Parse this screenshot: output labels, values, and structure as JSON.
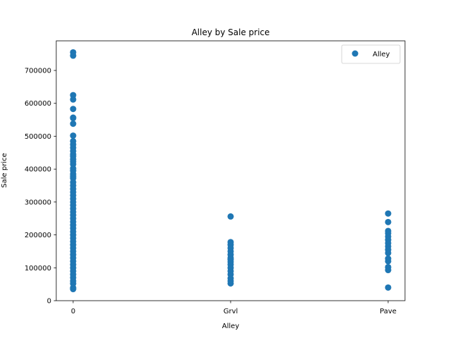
{
  "chart_data": {
    "type": "scatter",
    "title": "Alley by Sale price",
    "xlabel": "Alley",
    "ylabel": "Sale price",
    "categories": [
      "0",
      "Grvl",
      "Pave"
    ],
    "ylim": [
      0,
      790000
    ],
    "yticks": [
      0,
      100000,
      200000,
      300000,
      400000,
      500000,
      600000,
      700000
    ],
    "legend": {
      "position": "top-right",
      "label": "Alley"
    },
    "grid": false,
    "color": "#1f77b4",
    "series": [
      {
        "name": "Alley",
        "points": [
          {
            "x": "0",
            "y": 755000
          },
          {
            "x": "0",
            "y": 745000
          },
          {
            "x": "0",
            "y": 625000
          },
          {
            "x": "0",
            "y": 611657
          },
          {
            "x": "0",
            "y": 582933
          },
          {
            "x": "0",
            "y": 556581
          },
          {
            "x": "0",
            "y": 555000
          },
          {
            "x": "0",
            "y": 538000
          },
          {
            "x": "0",
            "y": 501837
          },
          {
            "x": "0",
            "y": 485000
          },
          {
            "x": "0",
            "y": 475000
          },
          {
            "x": "0",
            "y": 465000
          },
          {
            "x": "0",
            "y": 455000
          },
          {
            "x": "0",
            "y": 445000
          },
          {
            "x": "0",
            "y": 438780
          },
          {
            "x": "0",
            "y": 430000
          },
          {
            "x": "0",
            "y": 423000
          },
          {
            "x": "0",
            "y": 415000
          },
          {
            "x": "0",
            "y": 402000
          },
          {
            "x": "0",
            "y": 395000
          },
          {
            "x": "0",
            "y": 385000
          },
          {
            "x": "0",
            "y": 378500
          },
          {
            "x": "0",
            "y": 372500
          },
          {
            "x": "0",
            "y": 360000
          },
          {
            "x": "0",
            "y": 350000
          },
          {
            "x": "0",
            "y": 340000
          },
          {
            "x": "0",
            "y": 330000
          },
          {
            "x": "0",
            "y": 320000
          },
          {
            "x": "0",
            "y": 310000
          },
          {
            "x": "0",
            "y": 300000
          },
          {
            "x": "0",
            "y": 290000
          },
          {
            "x": "0",
            "y": 280000
          },
          {
            "x": "0",
            "y": 270000
          },
          {
            "x": "0",
            "y": 260000
          },
          {
            "x": "0",
            "y": 250000
          },
          {
            "x": "0",
            "y": 240000
          },
          {
            "x": "0",
            "y": 230000
          },
          {
            "x": "0",
            "y": 220000
          },
          {
            "x": "0",
            "y": 210000
          },
          {
            "x": "0",
            "y": 200000
          },
          {
            "x": "0",
            "y": 190000
          },
          {
            "x": "0",
            "y": 180000
          },
          {
            "x": "0",
            "y": 170000
          },
          {
            "x": "0",
            "y": 160000
          },
          {
            "x": "0",
            "y": 150000
          },
          {
            "x": "0",
            "y": 140000
          },
          {
            "x": "0",
            "y": 130000
          },
          {
            "x": "0",
            "y": 120000
          },
          {
            "x": "0",
            "y": 110000
          },
          {
            "x": "0",
            "y": 100000
          },
          {
            "x": "0",
            "y": 90000
          },
          {
            "x": "0",
            "y": 80000
          },
          {
            "x": "0",
            "y": 70000
          },
          {
            "x": "0",
            "y": 60000
          },
          {
            "x": "0",
            "y": 52000
          },
          {
            "x": "0",
            "y": 39300
          },
          {
            "x": "0",
            "y": 35311
          },
          {
            "x": "Grvl",
            "y": 256000
          },
          {
            "x": "Grvl",
            "y": 178000
          },
          {
            "x": "Grvl",
            "y": 170000
          },
          {
            "x": "Grvl",
            "y": 160000
          },
          {
            "x": "Grvl",
            "y": 150000
          },
          {
            "x": "Grvl",
            "y": 140000
          },
          {
            "x": "Grvl",
            "y": 130000
          },
          {
            "x": "Grvl",
            "y": 125000
          },
          {
            "x": "Grvl",
            "y": 118000
          },
          {
            "x": "Grvl",
            "y": 110000
          },
          {
            "x": "Grvl",
            "y": 100000
          },
          {
            "x": "Grvl",
            "y": 90000
          },
          {
            "x": "Grvl",
            "y": 80000
          },
          {
            "x": "Grvl",
            "y": 68000
          },
          {
            "x": "Grvl",
            "y": 60000
          },
          {
            "x": "Grvl",
            "y": 52500
          },
          {
            "x": "Pave",
            "y": 265000
          },
          {
            "x": "Pave",
            "y": 239000
          },
          {
            "x": "Pave",
            "y": 212000
          },
          {
            "x": "Pave",
            "y": 205000
          },
          {
            "x": "Pave",
            "y": 195000
          },
          {
            "x": "Pave",
            "y": 185000
          },
          {
            "x": "Pave",
            "y": 175000
          },
          {
            "x": "Pave",
            "y": 165000
          },
          {
            "x": "Pave",
            "y": 155000
          },
          {
            "x": "Pave",
            "y": 145000
          },
          {
            "x": "Pave",
            "y": 128000
          },
          {
            "x": "Pave",
            "y": 120000
          },
          {
            "x": "Pave",
            "y": 102000
          },
          {
            "x": "Pave",
            "y": 93000
          },
          {
            "x": "Pave",
            "y": 40000
          }
        ]
      }
    ]
  }
}
